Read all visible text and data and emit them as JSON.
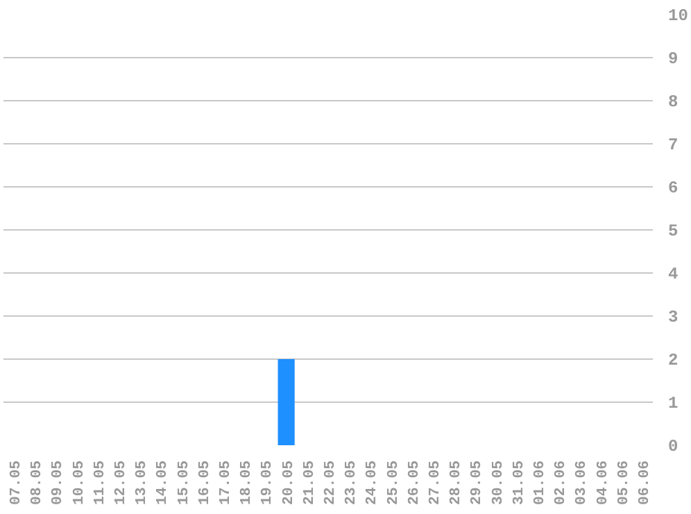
{
  "chart_data": {
    "type": "bar",
    "categories": [
      "07.05",
      "08.05",
      "09.05",
      "10.05",
      "11.05",
      "12.05",
      "13.05",
      "14.05",
      "15.05",
      "16.05",
      "17.05",
      "18.05",
      "19.05",
      "20.05",
      "21.05",
      "22.05",
      "23.05",
      "24.05",
      "25.05",
      "26.05",
      "27.05",
      "28.05",
      "29.05",
      "30.05",
      "31.05",
      "01.06",
      "02.06",
      "03.06",
      "04.06",
      "05.06",
      "06.06"
    ],
    "values": [
      0,
      0,
      0,
      0,
      0,
      0,
      0,
      0,
      0,
      0,
      0,
      0,
      0,
      2,
      0,
      0,
      0,
      0,
      0,
      0,
      0,
      0,
      0,
      0,
      0,
      0,
      0,
      0,
      0,
      0,
      0
    ],
    "color": "#1e90ff",
    "ylim": [
      0,
      10
    ],
    "yticks": [
      0,
      1,
      2,
      3,
      4,
      5,
      6,
      7,
      8,
      9,
      10
    ],
    "grid": "y"
  }
}
